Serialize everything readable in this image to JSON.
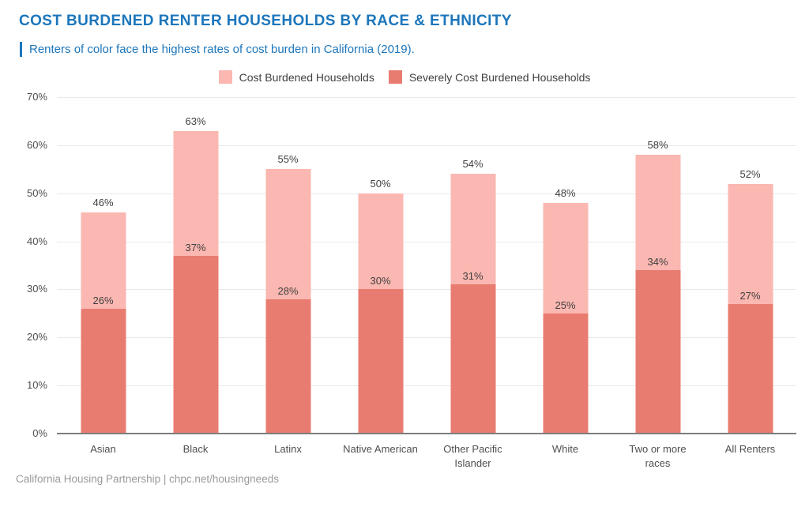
{
  "header": {
    "title": "COST BURDENED RENTER HOUSEHOLDS BY RACE & ETHNICITY",
    "subtitle": "Renters of color face the highest rates of cost burden in California (2019)."
  },
  "legend": {
    "items": [
      {
        "label": "Cost Burdened Households",
        "color": "#fbb7b1"
      },
      {
        "label": "Severely Cost Burdened Households",
        "color": "#e97c70"
      }
    ]
  },
  "footer": {
    "credit": "California Housing Partnership | chpc.net/housingneeds"
  },
  "theme": {
    "accent-blue": "#1d76bb",
    "light-pink": "#fbb7b1",
    "salmon": "#e97c70",
    "grid-gray": "#e9e9e9",
    "axis-gray": "#7d7d7d",
    "text-dark": "#3f3f3f",
    "text-gray": "#4f4f4f",
    "footer-gray": "#9a9a9a"
  },
  "chart_data": {
    "type": "bar",
    "stacked": true,
    "title": "COST BURDENED RENTER HOUSEHOLDS BY RACE & ETHNICITY",
    "subtitle": "Renters of color face the highest rates of cost burden in California (2019).",
    "categories": [
      "Asian",
      "Black",
      "Latinx",
      "Native American",
      "Other Pacific Islander",
      "White",
      "Two or more races",
      "All Renters"
    ],
    "series": [
      {
        "name": "Cost Burdened Households",
        "role": "total",
        "color": "#fbb7b1",
        "values": [
          46,
          63,
          55,
          50,
          54,
          48,
          58,
          52
        ]
      },
      {
        "name": "Severely Cost Burdened Households",
        "role": "severe-subset",
        "color": "#e97c70",
        "values": [
          26,
          37,
          28,
          30,
          31,
          25,
          34,
          27
        ]
      }
    ],
    "value_label_format": "{v}%",
    "xlabel": "",
    "ylabel": "",
    "ylim": [
      0,
      70
    ],
    "ytick_step": 10,
    "ytick_labels": [
      "0%",
      "10%",
      "20%",
      "30%",
      "40%",
      "50%",
      "60%",
      "70%"
    ],
    "grid": true,
    "legend_position": "top"
  }
}
